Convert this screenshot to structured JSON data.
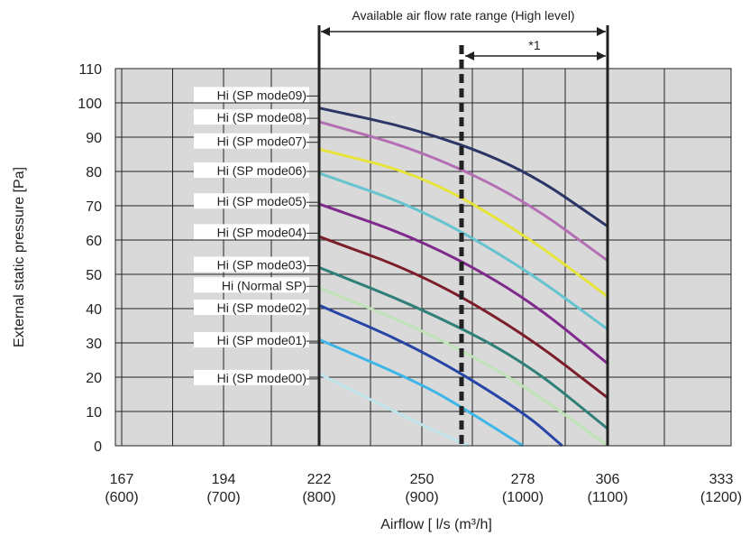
{
  "chart_data": {
    "type": "line",
    "title": "",
    "xlabel": "Airflow [ l/s (m³/h]",
    "ylabel": "External static pressure [Pa]",
    "xlim": [
      167,
      333
    ],
    "ylim": [
      0,
      110
    ],
    "y_ticks": [
      "0",
      "10",
      "20",
      "30",
      "40",
      "50",
      "60",
      "70",
      "80",
      "90",
      "100",
      "110"
    ],
    "x_ticks": [
      {
        "value": 167,
        "label": "167",
        "sub": "(600)"
      },
      {
        "value": 194,
        "label": "194",
        "sub": "(700)"
      },
      {
        "value": 222,
        "label": "222",
        "sub": "(800)"
      },
      {
        "value": 250,
        "label": "250",
        "sub": "(900)"
      },
      {
        "value": 278,
        "label": "278",
        "sub": "(1000)"
      },
      {
        "value": 306,
        "label": "306",
        "sub": "(1100)"
      },
      {
        "value": 333,
        "label": "333",
        "sub": "(1200)"
      }
    ],
    "grid": true,
    "range_annotation": {
      "label": "Available air flow rate range (High level)",
      "from": 222,
      "to": 306
    },
    "note_annotation": {
      "label": "*1",
      "from": 261,
      "to": 306
    },
    "dashed_line_x": 261,
    "range_lines_x": [
      222,
      306
    ],
    "series": [
      {
        "name": "Hi (SP mode09)",
        "color": "#2b3566",
        "x": [
          222,
          250,
          278,
          306
        ],
        "y": [
          98.5,
          92,
          81,
          64
        ]
      },
      {
        "name": "Hi (SP mode08)",
        "color": "#b46fb4",
        "x": [
          222,
          250,
          278,
          306
        ],
        "y": [
          94.5,
          86,
          72,
          54
        ]
      },
      {
        "name": "Hi (SP mode07)",
        "color": "#e6e33a",
        "x": [
          222,
          250,
          278,
          306
        ],
        "y": [
          86.5,
          79,
          62,
          43.5
        ]
      },
      {
        "name": "Hi (SP mode06)",
        "color": "#67c3cf",
        "x": [
          222,
          250,
          278,
          306
        ],
        "y": [
          79.5,
          69,
          52,
          34
        ]
      },
      {
        "name": "Hi (SP mode05)",
        "color": "#7f2a8c",
        "x": [
          222,
          250,
          278,
          306
        ],
        "y": [
          70.5,
          60,
          44,
          24
        ]
      },
      {
        "name": "Hi (SP mode04)",
        "color": "#7c1d2a",
        "x": [
          222,
          250,
          278,
          306
        ],
        "y": [
          61,
          50,
          33,
          14
        ]
      },
      {
        "name": "Hi (SP mode03)",
        "color": "#2f8078",
        "x": [
          222,
          250,
          278,
          306
        ],
        "y": [
          52,
          40,
          25,
          5
        ]
      },
      {
        "name": "Hi (Normal SP)",
        "color": "#bfe3b6",
        "x": [
          222,
          250,
          278,
          306
        ],
        "y": [
          46,
          34,
          18,
          0
        ]
      },
      {
        "name": "Hi (SP mode02)",
        "color": "#2745a6",
        "x": [
          222,
          250,
          278,
          291
        ],
        "y": [
          41,
          28,
          10,
          0
        ]
      },
      {
        "name": "Hi (SP mode01)",
        "color": "#3fb6e8",
        "x": [
          222,
          250,
          263,
          278
        ],
        "y": [
          31,
          18,
          10,
          0
        ]
      },
      {
        "name": "Hi (SP mode00)",
        "color": "#bfe4ea",
        "x": [
          222,
          250,
          263
        ],
        "y": [
          21,
          6,
          0
        ]
      }
    ],
    "label_y": [
      102,
      95.5,
      88.5,
      80,
      71,
      62,
      52.5,
      46.5,
      40,
      30.5,
      19.5
    ]
  }
}
